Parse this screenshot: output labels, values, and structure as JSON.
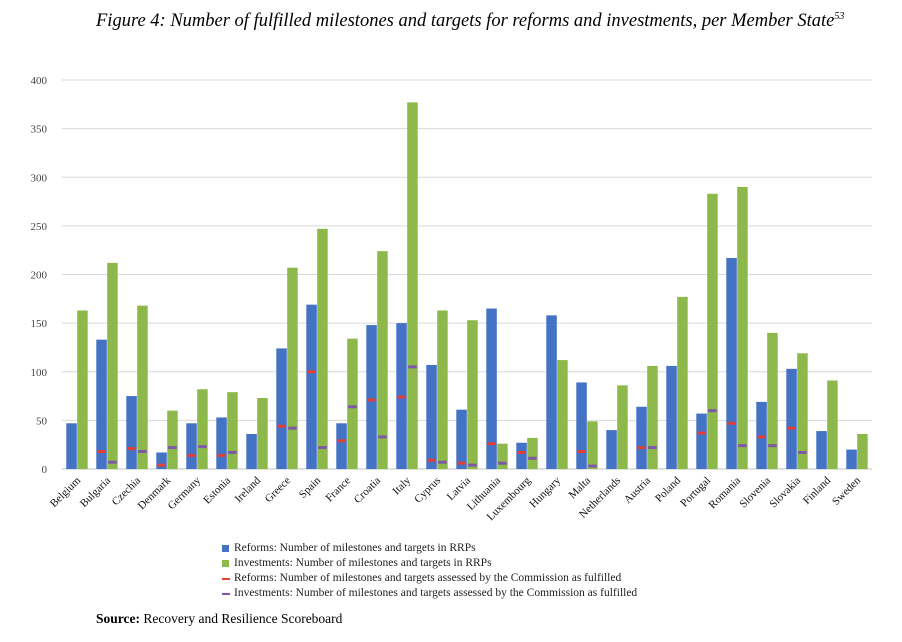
{
  "figure": {
    "title": "Figure 4: Number of fulfilled milestones and targets for reforms and investments, per Member State",
    "footnote": "53",
    "source_label": "Source:",
    "source_text": "Recovery and Resilience Scoreboard"
  },
  "colors": {
    "reforms": "#4472C4",
    "investments": "#8DB84A",
    "reforms_fulfilled": "#E0403A",
    "investments_fulfilled": "#7E57A8",
    "grid": "#D9D9D9"
  },
  "chart_data": {
    "type": "bar",
    "title": "Figure 4: Number of fulfilled milestones and targets for reforms and investments, per Member State",
    "xlabel": "",
    "ylabel": "",
    "ylim": [
      0,
      400
    ],
    "yticks": [
      0,
      50,
      100,
      150,
      200,
      250,
      300,
      350,
      400
    ],
    "grid": true,
    "legend_position": "bottom",
    "categories": [
      "Belgium",
      "Bulgaria",
      "Czechia",
      "Denmark",
      "Germany",
      "Estonia",
      "Ireland",
      "Greece",
      "Spain",
      "France",
      "Croatia",
      "Italy",
      "Cyprus",
      "Latvia",
      "Lithuania",
      "Luxembourg",
      "Hungary",
      "Malta",
      "Netherlands",
      "Austria",
      "Poland",
      "Portugal",
      "Romania",
      "Slovenia",
      "Slovakia",
      "Finland",
      "Sweden"
    ],
    "series": [
      {
        "name": "Reforms: Number of milestones and targets in RRPs",
        "kind": "bar",
        "values": [
          47,
          133,
          75,
          17,
          47,
          53,
          36,
          124,
          169,
          47,
          148,
          150,
          107,
          61,
          165,
          27,
          158,
          89,
          40,
          64,
          106,
          57,
          217,
          69,
          103,
          39,
          20
        ]
      },
      {
        "name": "Investments: Number of milestones and targets in RRPs",
        "kind": "bar",
        "values": [
          163,
          212,
          168,
          60,
          82,
          79,
          73,
          207,
          247,
          134,
          224,
          377,
          163,
          153,
          26,
          32,
          112,
          49,
          86,
          106,
          177,
          283,
          290,
          140,
          119,
          91,
          36
        ]
      },
      {
        "name": "Reforms: Number of milestones and targets assessed by the Commission as fulfilled",
        "kind": "marker",
        "values": [
          0,
          18,
          21,
          4,
          14,
          14,
          0,
          44,
          100,
          29,
          71,
          74,
          9,
          6,
          26,
          17,
          0,
          18,
          0,
          22,
          0,
          37,
          47,
          33,
          42,
          0,
          0
        ]
      },
      {
        "name": "Investments: Number of milestones and targets assessed by the Commission as fulfilled",
        "kind": "marker",
        "values": [
          0,
          7,
          18,
          22,
          23,
          17,
          0,
          42,
          22,
          64,
          33,
          105,
          7,
          4,
          6,
          11,
          0,
          3,
          0,
          22,
          0,
          60,
          24,
          24,
          17,
          0,
          0
        ]
      }
    ]
  }
}
